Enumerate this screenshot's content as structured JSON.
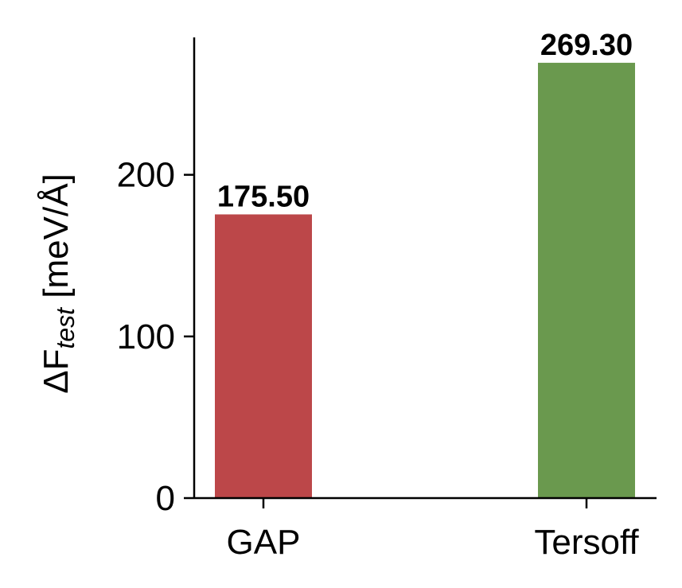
{
  "chart_data": {
    "type": "bar",
    "categories": [
      "GAP",
      "Tersoff"
    ],
    "values": [
      175.5,
      269.3
    ],
    "value_labels": [
      "175.50",
      "269.30"
    ],
    "colors": [
      "#bc4749",
      "#6a994e"
    ],
    "ylabel_parts": {
      "base": "ΔF",
      "sub": "test",
      "unit": " [meV/Å]"
    },
    "ylim": [
      0,
      285
    ],
    "yticks": [
      0,
      100,
      200
    ],
    "ytick_labels": [
      "0",
      "100",
      "200"
    ],
    "grid": false,
    "legend": "none"
  }
}
